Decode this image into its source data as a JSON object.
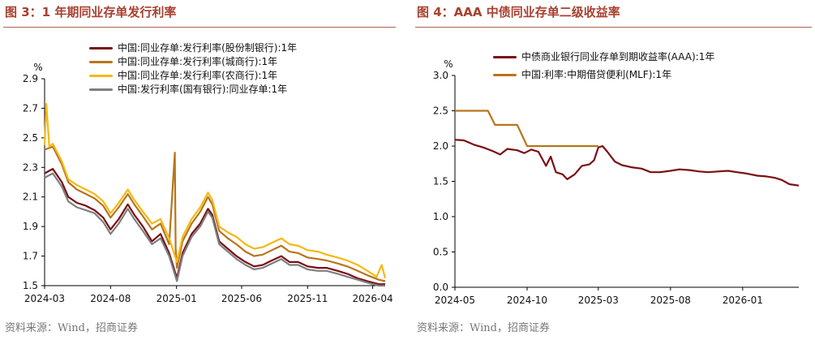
{
  "chart_data": [
    {
      "type": "line",
      "title": "图 3：1 年期同业存单发行利率",
      "ylabel": "%",
      "ylim": [
        1.5,
        2.9
      ],
      "yticks": [
        "1.5",
        "1.7",
        "1.9",
        "2.1",
        "2.3",
        "2.5",
        "2.7",
        "2.9"
      ],
      "xlim": [
        "2024-03-01",
        "2026-04-30"
      ],
      "xticks": [
        "2024-03",
        "2024-08",
        "2025-01",
        "2025-06",
        "2025-11",
        "2026-04"
      ],
      "legend_position": "top-right",
      "source": "资料来源：Wind，招商证券",
      "series": [
        {
          "name": "中国:同业存单:发行利率(股份制银行):1年",
          "color": "#7b0e14",
          "points": [
            [
              "2024-03-01",
              2.26
            ],
            [
              "2024-03-20",
              2.29
            ],
            [
              "2024-04-10",
              2.2
            ],
            [
              "2024-04-25",
              2.1
            ],
            [
              "2024-05-15",
              2.06
            ],
            [
              "2024-06-05",
              2.04
            ],
            [
              "2024-06-25",
              2.01
            ],
            [
              "2024-07-15",
              1.96
            ],
            [
              "2024-08-01",
              1.88
            ],
            [
              "2024-08-20",
              1.95
            ],
            [
              "2024-09-10",
              2.05
            ],
            [
              "2024-09-25",
              1.98
            ],
            [
              "2024-10-15",
              1.9
            ],
            [
              "2024-11-05",
              1.8
            ],
            [
              "2024-11-25",
              1.85
            ],
            [
              "2024-12-15",
              1.72
            ],
            [
              "2025-01-02",
              1.55
            ],
            [
              "2025-01-15",
              1.72
            ],
            [
              "2025-02-05",
              1.85
            ],
            [
              "2025-02-25",
              1.92
            ],
            [
              "2025-03-15",
              2.02
            ],
            [
              "2025-03-25",
              1.98
            ],
            [
              "2025-04-10",
              1.8
            ],
            [
              "2025-04-30",
              1.75
            ],
            [
              "2025-05-20",
              1.7
            ],
            [
              "2025-06-10",
              1.66
            ],
            [
              "2025-06-30",
              1.63
            ],
            [
              "2025-07-20",
              1.64
            ],
            [
              "2025-08-10",
              1.67
            ],
            [
              "2025-09-01",
              1.7
            ],
            [
              "2025-09-20",
              1.66
            ],
            [
              "2025-10-10",
              1.66
            ],
            [
              "2025-11-01",
              1.63
            ],
            [
              "2025-11-25",
              1.62
            ],
            [
              "2025-12-15",
              1.62
            ],
            [
              "2026-01-10",
              1.6
            ],
            [
              "2026-02-01",
              1.58
            ],
            [
              "2026-02-25",
              1.55
            ],
            [
              "2026-03-20",
              1.53
            ],
            [
              "2026-04-15",
              1.51
            ],
            [
              "2026-04-30",
              1.51
            ]
          ]
        },
        {
          "name": "中国:同业存单:发行利率(城商行):1年",
          "color": "#b8751a",
          "points": [
            [
              "2024-03-01",
              2.42
            ],
            [
              "2024-03-20",
              2.44
            ],
            [
              "2024-04-10",
              2.32
            ],
            [
              "2024-04-25",
              2.2
            ],
            [
              "2024-05-15",
              2.15
            ],
            [
              "2024-06-05",
              2.12
            ],
            [
              "2024-06-25",
              2.09
            ],
            [
              "2024-07-15",
              2.04
            ],
            [
              "2024-08-01",
              1.96
            ],
            [
              "2024-08-20",
              2.03
            ],
            [
              "2024-09-10",
              2.12
            ],
            [
              "2024-09-25",
              2.05
            ],
            [
              "2024-10-15",
              1.97
            ],
            [
              "2024-11-05",
              1.88
            ],
            [
              "2024-11-25",
              1.92
            ],
            [
              "2024-12-15",
              1.78
            ],
            [
              "2024-12-28",
              2.4
            ],
            [
              "2024-12-30",
              1.75
            ],
            [
              "2025-01-02",
              1.62
            ],
            [
              "2025-01-15",
              1.8
            ],
            [
              "2025-02-05",
              1.92
            ],
            [
              "2025-02-25",
              2.0
            ],
            [
              "2025-03-15",
              2.1
            ],
            [
              "2025-03-25",
              2.05
            ],
            [
              "2025-04-10",
              1.87
            ],
            [
              "2025-04-30",
              1.82
            ],
            [
              "2025-05-20",
              1.78
            ],
            [
              "2025-06-10",
              1.73
            ],
            [
              "2025-06-30",
              1.7
            ],
            [
              "2025-07-20",
              1.71
            ],
            [
              "2025-08-10",
              1.74
            ],
            [
              "2025-09-01",
              1.77
            ],
            [
              "2025-09-20",
              1.73
            ],
            [
              "2025-10-10",
              1.72
            ],
            [
              "2025-11-01",
              1.69
            ],
            [
              "2025-11-25",
              1.68
            ],
            [
              "2025-12-15",
              1.67
            ],
            [
              "2026-01-10",
              1.65
            ],
            [
              "2026-02-01",
              1.63
            ],
            [
              "2026-02-25",
              1.6
            ],
            [
              "2026-03-20",
              1.57
            ],
            [
              "2026-04-15",
              1.54
            ],
            [
              "2026-04-30",
              1.53
            ]
          ]
        },
        {
          "name": "中国:同业存单:发行利率(农商行):1年",
          "color": "#f5b814",
          "points": [
            [
              "2024-03-01",
              2.45
            ],
            [
              "2024-03-05",
              2.73
            ],
            [
              "2024-03-12",
              2.44
            ],
            [
              "2024-03-20",
              2.46
            ],
            [
              "2024-04-10",
              2.34
            ],
            [
              "2024-04-25",
              2.22
            ],
            [
              "2024-05-15",
              2.18
            ],
            [
              "2024-06-05",
              2.15
            ],
            [
              "2024-06-25",
              2.12
            ],
            [
              "2024-07-15",
              2.07
            ],
            [
              "2024-08-01",
              1.99
            ],
            [
              "2024-08-20",
              2.06
            ],
            [
              "2024-09-10",
              2.15
            ],
            [
              "2024-09-25",
              2.08
            ],
            [
              "2024-10-15",
              2.0
            ],
            [
              "2024-11-05",
              1.92
            ],
            [
              "2024-11-25",
              1.95
            ],
            [
              "2024-12-15",
              1.82
            ],
            [
              "2025-01-02",
              1.66
            ],
            [
              "2025-01-15",
              1.83
            ],
            [
              "2025-02-05",
              1.95
            ],
            [
              "2025-02-25",
              2.03
            ],
            [
              "2025-03-15",
              2.13
            ],
            [
              "2025-03-25",
              2.08
            ],
            [
              "2025-04-10",
              1.9
            ],
            [
              "2025-04-30",
              1.86
            ],
            [
              "2025-05-20",
              1.83
            ],
            [
              "2025-06-10",
              1.78
            ],
            [
              "2025-06-30",
              1.75
            ],
            [
              "2025-07-20",
              1.76
            ],
            [
              "2025-08-10",
              1.79
            ],
            [
              "2025-09-01",
              1.82
            ],
            [
              "2025-09-20",
              1.78
            ],
            [
              "2025-10-10",
              1.77
            ],
            [
              "2025-11-01",
              1.74
            ],
            [
              "2025-11-25",
              1.73
            ],
            [
              "2025-12-15",
              1.71
            ],
            [
              "2026-01-10",
              1.69
            ],
            [
              "2026-02-01",
              1.67
            ],
            [
              "2026-02-25",
              1.64
            ],
            [
              "2026-03-20",
              1.6
            ],
            [
              "2026-04-10",
              1.56
            ],
            [
              "2026-04-22",
              1.64
            ],
            [
              "2026-04-30",
              1.55
            ]
          ]
        },
        {
          "name": "中国:发行利率(国有银行):同业存单:1年",
          "color": "#7f7f7f",
          "points": [
            [
              "2024-03-01",
              2.23
            ],
            [
              "2024-03-20",
              2.26
            ],
            [
              "2024-04-10",
              2.17
            ],
            [
              "2024-04-25",
              2.07
            ],
            [
              "2024-05-15",
              2.03
            ],
            [
              "2024-06-05",
              2.01
            ],
            [
              "2024-06-25",
              1.99
            ],
            [
              "2024-07-15",
              1.93
            ],
            [
              "2024-08-01",
              1.85
            ],
            [
              "2024-08-20",
              1.92
            ],
            [
              "2024-09-10",
              2.02
            ],
            [
              "2024-09-25",
              1.95
            ],
            [
              "2024-10-15",
              1.87
            ],
            [
              "2024-11-05",
              1.78
            ],
            [
              "2024-11-25",
              1.82
            ],
            [
              "2024-12-15",
              1.7
            ],
            [
              "2025-01-02",
              1.53
            ],
            [
              "2025-01-15",
              1.7
            ],
            [
              "2025-02-05",
              1.83
            ],
            [
              "2025-02-25",
              1.9
            ],
            [
              "2025-03-15",
              2.0
            ],
            [
              "2025-03-25",
              1.96
            ],
            [
              "2025-04-10",
              1.78
            ],
            [
              "2025-04-30",
              1.73
            ],
            [
              "2025-05-20",
              1.68
            ],
            [
              "2025-06-10",
              1.64
            ],
            [
              "2025-06-30",
              1.61
            ],
            [
              "2025-07-20",
              1.62
            ],
            [
              "2025-08-10",
              1.65
            ],
            [
              "2025-09-01",
              1.68
            ],
            [
              "2025-09-20",
              1.64
            ],
            [
              "2025-10-10",
              1.64
            ],
            [
              "2025-11-01",
              1.61
            ],
            [
              "2025-11-25",
              1.6
            ],
            [
              "2025-12-15",
              1.6
            ],
            [
              "2026-01-10",
              1.58
            ],
            [
              "2026-02-01",
              1.56
            ],
            [
              "2026-02-25",
              1.54
            ],
            [
              "2026-03-20",
              1.52
            ],
            [
              "2026-04-15",
              1.5
            ],
            [
              "2026-04-30",
              1.5
            ]
          ]
        }
      ]
    },
    {
      "type": "line",
      "title": "图 4：AAA 中债同业存单二级收益率",
      "ylabel": "%",
      "ylim": [
        0.0,
        3.0
      ],
      "yticks": [
        "0.0",
        "0.5",
        "1.0",
        "1.5",
        "2.0",
        "2.5",
        "3.0"
      ],
      "xlim": [
        "2024-05-01",
        "2026-04-30"
      ],
      "xticks": [
        "2024-05",
        "2024-10",
        "2025-03",
        "2025-08",
        "2026-01"
      ],
      "legend_position": "top-center",
      "source": "资料来源：Wind，招商证券",
      "series": [
        {
          "name": "中债商业银行同业存单到期收益率(AAA):1年",
          "color": "#7b0e14",
          "points": [
            [
              "2024-05-01",
              2.09
            ],
            [
              "2024-05-20",
              2.08
            ],
            [
              "2024-06-10",
              2.02
            ],
            [
              "2024-06-30",
              1.98
            ],
            [
              "2024-07-20",
              1.93
            ],
            [
              "2024-08-05",
              1.88
            ],
            [
              "2024-08-20",
              1.96
            ],
            [
              "2024-09-10",
              1.94
            ],
            [
              "2024-09-25",
              1.9
            ],
            [
              "2024-10-10",
              1.95
            ],
            [
              "2024-10-25",
              1.92
            ],
            [
              "2024-11-10",
              1.72
            ],
            [
              "2024-11-20",
              1.85
            ],
            [
              "2024-12-01",
              1.63
            ],
            [
              "2024-12-15",
              1.6
            ],
            [
              "2024-12-25",
              1.53
            ],
            [
              "2025-01-10",
              1.6
            ],
            [
              "2025-01-25",
              1.72
            ],
            [
              "2025-02-10",
              1.74
            ],
            [
              "2025-02-20",
              1.8
            ],
            [
              "2025-03-01",
              1.98
            ],
            [
              "2025-03-10",
              2.0
            ],
            [
              "2025-03-20",
              1.92
            ],
            [
              "2025-04-05",
              1.78
            ],
            [
              "2025-04-20",
              1.73
            ],
            [
              "2025-05-10",
              1.7
            ],
            [
              "2025-06-01",
              1.68
            ],
            [
              "2025-06-20",
              1.63
            ],
            [
              "2025-07-10",
              1.63
            ],
            [
              "2025-08-01",
              1.65
            ],
            [
              "2025-08-20",
              1.67
            ],
            [
              "2025-09-10",
              1.66
            ],
            [
              "2025-10-01",
              1.64
            ],
            [
              "2025-10-20",
              1.63
            ],
            [
              "2025-11-10",
              1.64
            ],
            [
              "2025-12-01",
              1.65
            ],
            [
              "2025-12-20",
              1.63
            ],
            [
              "2026-01-10",
              1.61
            ],
            [
              "2026-02-01",
              1.58
            ],
            [
              "2026-02-20",
              1.57
            ],
            [
              "2026-03-10",
              1.55
            ],
            [
              "2026-03-25",
              1.52
            ],
            [
              "2026-04-10",
              1.46
            ],
            [
              "2026-04-30",
              1.44
            ]
          ]
        },
        {
          "name": "中国:利率:中期借贷便利(MLF):1年",
          "color": "#b8751a",
          "points": [
            [
              "2024-05-01",
              2.5
            ],
            [
              "2024-07-10",
              2.5
            ],
            [
              "2024-07-25",
              2.3
            ],
            [
              "2024-09-10",
              2.3
            ],
            [
              "2024-10-01",
              2.0
            ],
            [
              "2025-03-01",
              2.0
            ]
          ]
        }
      ]
    }
  ]
}
